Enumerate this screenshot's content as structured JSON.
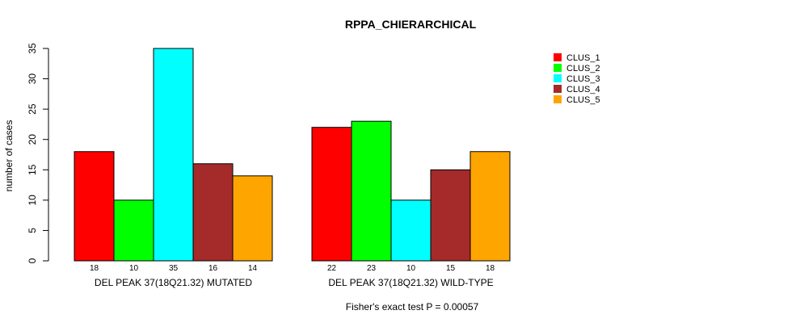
{
  "chart_data": {
    "type": "bar",
    "title": "RPPA_CHIERARCHICAL",
    "ylabel": "number of cases",
    "ylim": [
      0,
      35
    ],
    "yticks": [
      0,
      5,
      10,
      15,
      20,
      25,
      30,
      35
    ],
    "groups": [
      {
        "label": "DEL PEAK 37(18Q21.32) MUTATED",
        "values": [
          18,
          10,
          35,
          16,
          14
        ]
      },
      {
        "label": "DEL PEAK 37(18Q21.32) WILD-TYPE",
        "values": [
          22,
          23,
          10,
          15,
          18
        ]
      }
    ],
    "series": [
      {
        "name": "CLUS_1",
        "color": "#ff0000"
      },
      {
        "name": "CLUS_2",
        "color": "#00ff00"
      },
      {
        "name": "CLUS_3",
        "color": "#00ffff"
      },
      {
        "name": "CLUS_4",
        "color": "#a52a2a"
      },
      {
        "name": "CLUS_5",
        "color": "#ffa500"
      }
    ],
    "legend_position": "top-right",
    "footnote": "Fisher's exact test P = 0.00057"
  }
}
